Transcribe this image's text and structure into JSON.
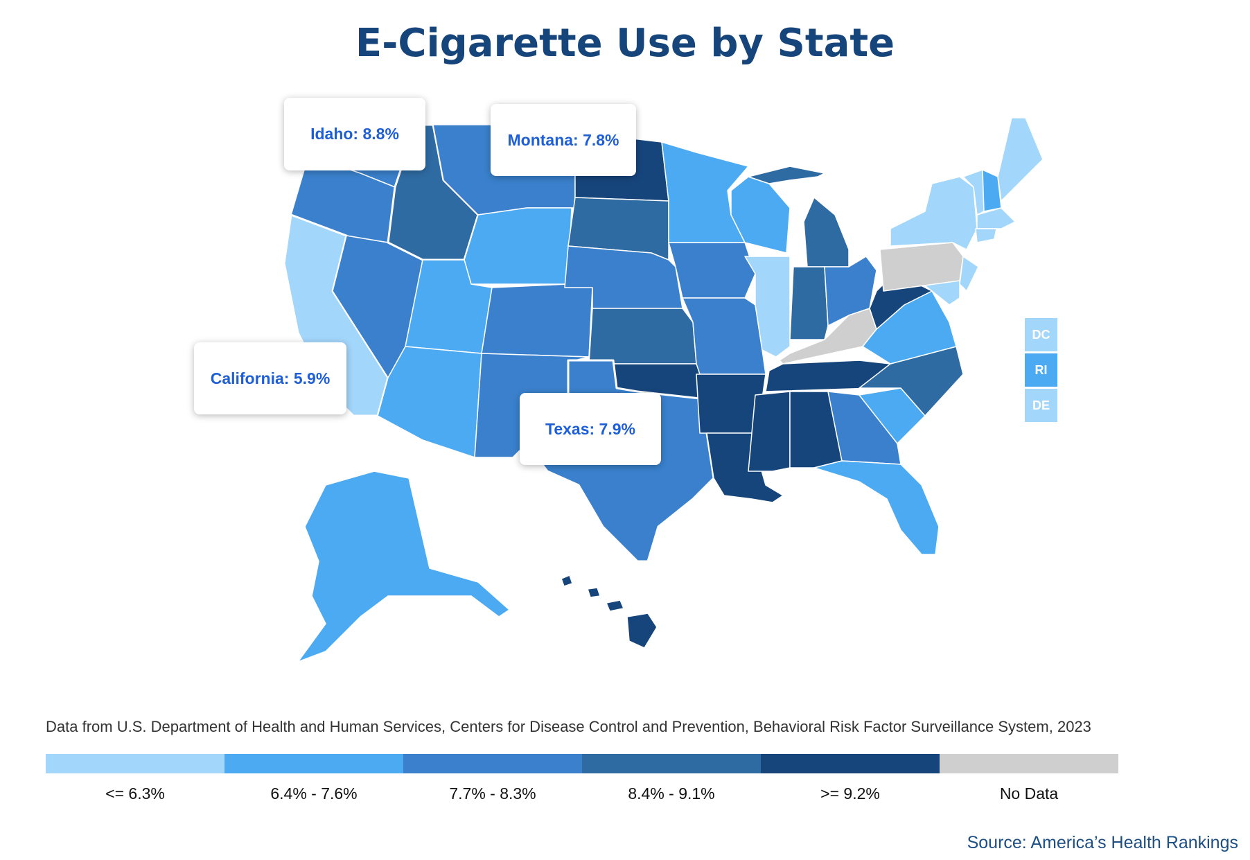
{
  "title": "E-Cigarette Use by State",
  "colors": {
    "c1": "#a3d6fb",
    "c2": "#4baaf2",
    "c3": "#3a80cc",
    "c4": "#2e6ba3",
    "c5": "#16457c",
    "nodata": "#cfcfcf",
    "title": "#16457c",
    "callout_text": "#1f5fd6",
    "source": "#1c4f86"
  },
  "callouts": [
    {
      "label": "Idaho: 8.8%"
    },
    {
      "label": "Montana: 7.8%"
    },
    {
      "label": "California: 5.9%"
    },
    {
      "label": "Texas: 7.9%"
    }
  ],
  "small_states": [
    {
      "label": "DC",
      "bin": "c1"
    },
    {
      "label": "RI",
      "bin": "c2"
    },
    {
      "label": "DE",
      "bin": "c1"
    }
  ],
  "data_note": "Data from U.S. Department of Health and Human Services, Centers for Disease Control and Prevention, Behavioral Risk Factor Surveillance System, 2023",
  "legend": [
    {
      "label": "<= 6.3%",
      "color": "#a3d6fb"
    },
    {
      "label": "6.4% - 7.6%",
      "color": "#4baaf2"
    },
    {
      "label": "7.7% - 8.3%",
      "color": "#3a80cc"
    },
    {
      "label": "8.4% - 9.1%",
      "color": "#2e6ba3"
    },
    {
      "label": ">= 9.2%",
      "color": "#16457c"
    },
    {
      "label": "No Data",
      "color": "#cfcfcf"
    }
  ],
  "source": "Source: America’s Health Rankings"
}
